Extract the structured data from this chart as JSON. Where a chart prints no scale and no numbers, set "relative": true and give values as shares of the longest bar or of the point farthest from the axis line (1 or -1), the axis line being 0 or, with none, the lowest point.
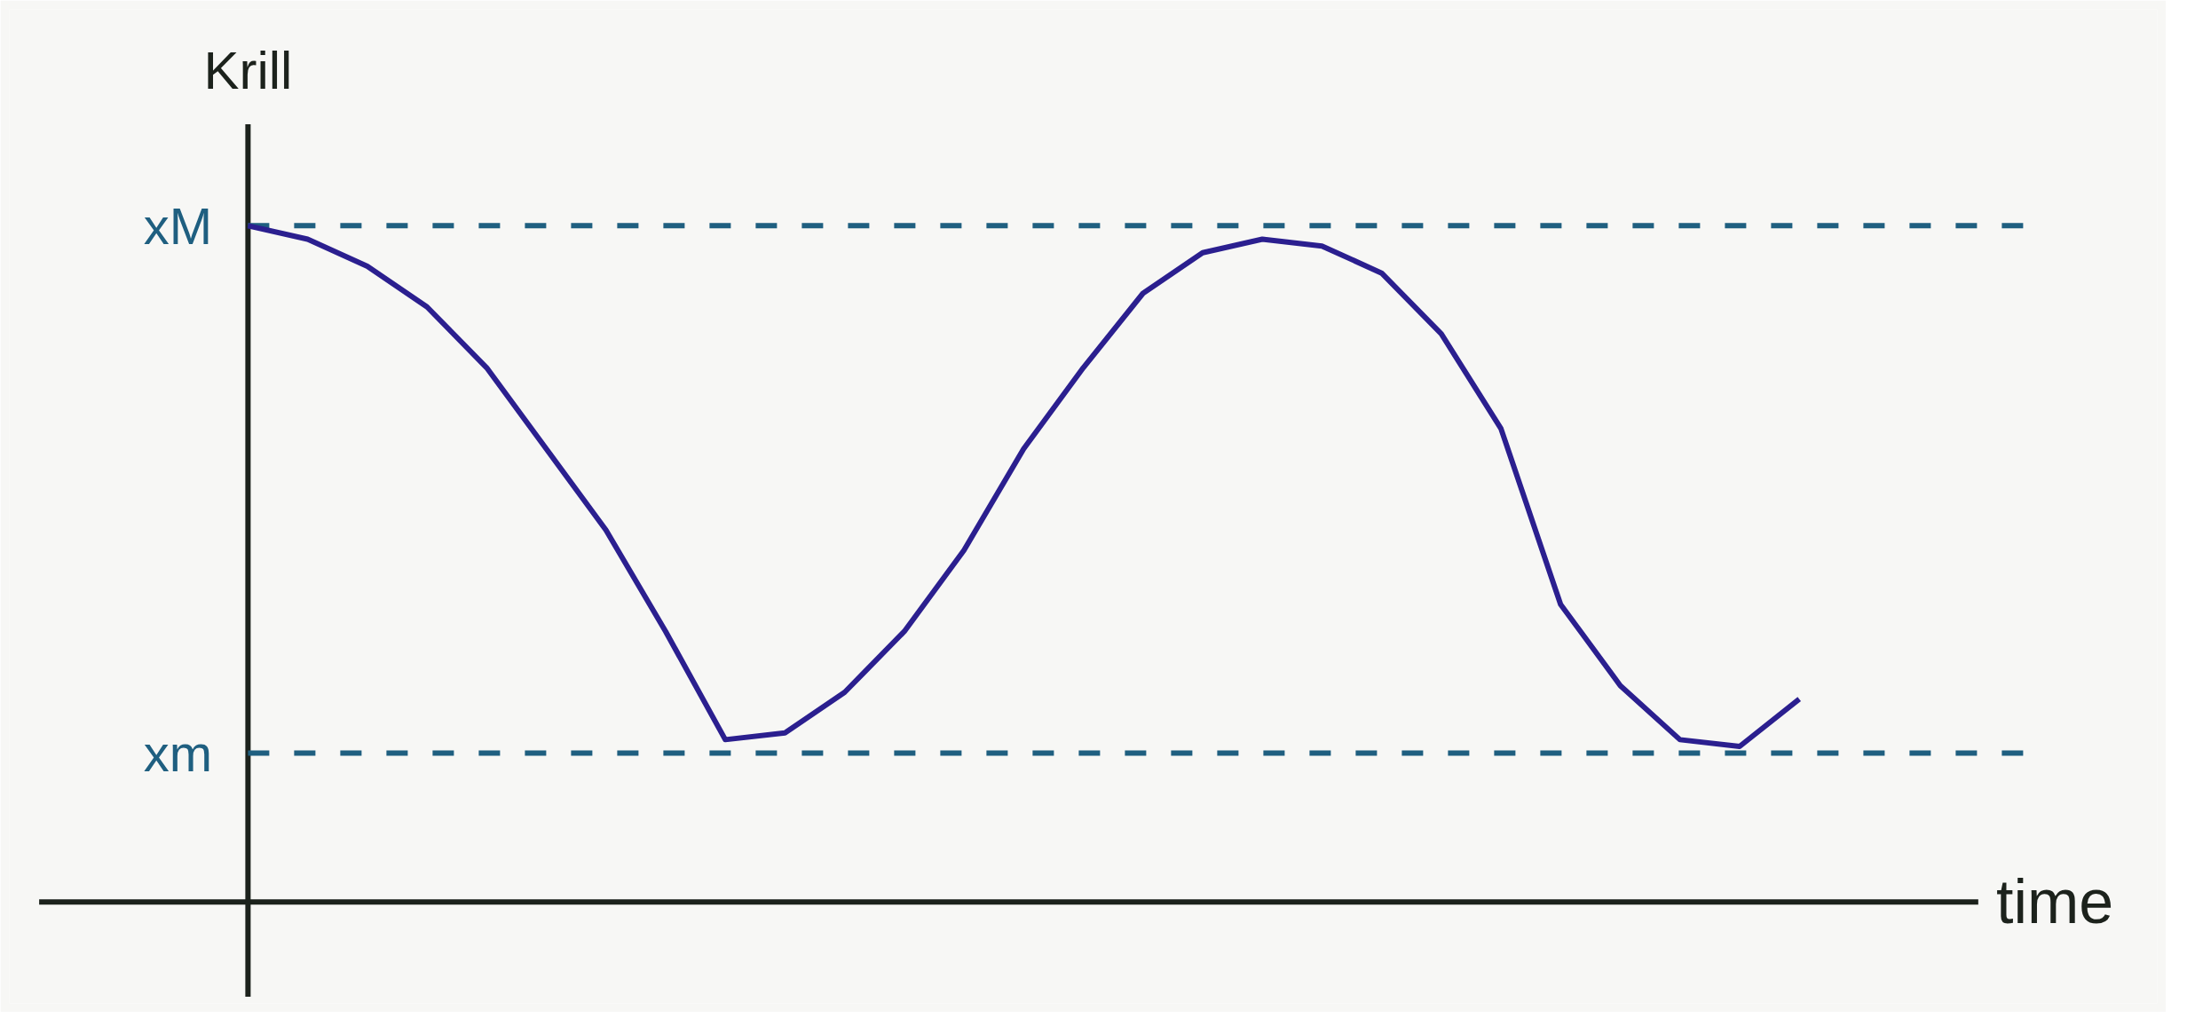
{
  "chart_data": {
    "type": "line",
    "relative": true,
    "xlabel": "time",
    "ylabel": "Krill",
    "categories": [
      null,
      null,
      null,
      null,
      null,
      null,
      null,
      null,
      null,
      null,
      null,
      null,
      null,
      null,
      null,
      null,
      null,
      null,
      null,
      null,
      null,
      null,
      null,
      null,
      null,
      null,
      null
    ],
    "series": [
      {
        "color": "#2b1f8f",
        "values": [
          1.0,
          0.98,
          0.94,
          0.88,
          0.79,
          0.67,
          0.55,
          0.4,
          0.24,
          0.25,
          0.31,
          0.4,
          0.52,
          0.67,
          0.79,
          0.9,
          0.96,
          0.98,
          0.97,
          0.93,
          0.84,
          0.7,
          0.44,
          0.32,
          0.24,
          0.23,
          0.3
        ]
      }
    ],
    "ref_lines": [
      {
        "axis": "y",
        "value": 1.0,
        "label": "xM",
        "color": "#1f5f80",
        "line_style": "dashed"
      },
      {
        "axis": "y",
        "value": 0.22,
        "label": "xm",
        "color": "#1f5f80",
        "line_style": "dashed"
      }
    ],
    "grid": false
  }
}
